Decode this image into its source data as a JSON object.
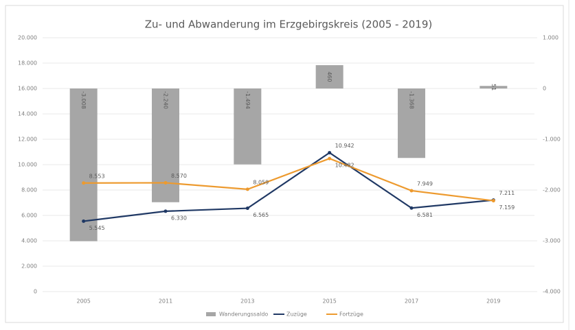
{
  "chart_data": {
    "type": "combo",
    "title": "Zu- und Abwanderung im Erzgebirgskreis (2005 - 2019)",
    "categories": [
      "2005",
      "2011",
      "2013",
      "2015",
      "2017",
      "2019"
    ],
    "series": [
      {
        "name": "Wanderungssaldo",
        "type": "bar",
        "axis": "y2",
        "color": "#a6a6a6",
        "values": [
          -3008,
          -2240,
          -1494,
          460,
          -1368,
          51
        ],
        "value_labels": [
          "-3.008",
          "-2.240",
          "-1.494",
          "460",
          "-1.368",
          "51"
        ]
      },
      {
        "name": "Zuzüge",
        "type": "line",
        "color": "#1f3864",
        "values": [
          5545,
          6330,
          6565,
          10942,
          6581,
          7211
        ],
        "value_labels": [
          "5.545",
          "6.330",
          "6.565",
          "10.942",
          "6.581",
          "7.211"
        ]
      },
      {
        "name": "Fortzüge",
        "type": "line",
        "color": "#ed9a2e",
        "values": [
          8553,
          8570,
          8059,
          10482,
          7949,
          7159
        ],
        "value_labels": [
          "8.553",
          "8.570",
          "8.059",
          "10.482",
          "7.949",
          "7.159"
        ]
      }
    ],
    "ylim": [
      0,
      20000
    ],
    "yticks": [
      0,
      {
        "value": 2000,
        "label": "2.000"
      },
      {
        "value": 4000,
        "label": "4.000"
      },
      {
        "value": 6000,
        "label": "6.000"
      },
      {
        "value": 8000,
        "label": "8.000"
      },
      {
        "value": 10000,
        "label": "10.000"
      },
      {
        "value": 12000,
        "label": "12.000"
      },
      {
        "value": 14000,
        "label": "14.000"
      },
      {
        "value": 16000,
        "label": "16.000"
      },
      {
        "value": 18000,
        "label": "18.000"
      },
      {
        "value": 20000,
        "label": "20.000"
      }
    ],
    "y2lim": [
      -4000,
      1000
    ],
    "y2ticks": [
      {
        "value": -4000,
        "label": "-4.000"
      },
      {
        "value": -3000,
        "label": "-3.000"
      },
      {
        "value": -2000,
        "label": "-2.000"
      },
      {
        "value": -1000,
        "label": "-1.000"
      },
      0,
      {
        "value": 1000,
        "label": "1.000"
      }
    ],
    "grid": true,
    "legend": "bottom"
  }
}
